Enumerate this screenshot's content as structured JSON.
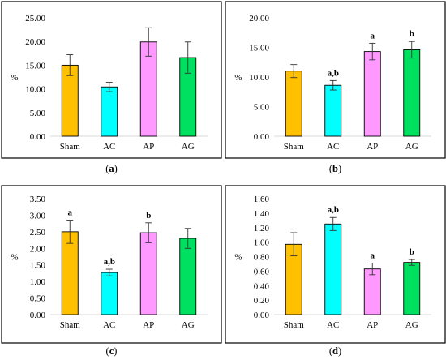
{
  "colors": {
    "Sham": "#FFC000",
    "AC": "#00FFFF",
    "AP": "#FF99FF",
    "AG": "#00E060",
    "frame": "#000000",
    "axis": "#D9D9D9"
  },
  "chart_data": [
    {
      "panel": "a",
      "type": "bar",
      "categories": [
        "Sham",
        "AC",
        "AP",
        "AG"
      ],
      "values": [
        15.0,
        10.4,
        19.9,
        16.6
      ],
      "errors": [
        2.2,
        1.0,
        3.0,
        3.3
      ],
      "significance": [
        "",
        "",
        "",
        ""
      ],
      "ylabel": "%",
      "ylim": [
        0,
        25
      ],
      "yticks": [
        "0.00",
        "5.00",
        "10.00",
        "15.00",
        "20.00",
        "25.00"
      ],
      "grid": false
    },
    {
      "panel": "b",
      "type": "bar",
      "categories": [
        "Sham",
        "AC",
        "AP",
        "AG"
      ],
      "values": [
        11.0,
        8.6,
        14.3,
        14.6
      ],
      "errors": [
        1.1,
        0.8,
        1.4,
        1.4
      ],
      "significance": [
        "",
        "a,b",
        "a",
        "b"
      ],
      "ylabel": "%",
      "ylim": [
        0,
        20
      ],
      "yticks": [
        "0.00",
        "5.00",
        "10.00",
        "15.00",
        "20.00"
      ],
      "grid": false
    },
    {
      "panel": "c",
      "type": "bar",
      "categories": [
        "Sham",
        "AC",
        "AP",
        "AG"
      ],
      "values": [
        2.5,
        1.27,
        2.47,
        2.3
      ],
      "errors": [
        0.35,
        0.1,
        0.3,
        0.3
      ],
      "significance": [
        "a",
        "a,b",
        "b",
        ""
      ],
      "ylabel": "%",
      "ylim": [
        0,
        3.5
      ],
      "yticks": [
        "0.00",
        "0.50",
        "1.00",
        "1.50",
        "2.00",
        "2.50",
        "3.00",
        "3.50"
      ],
      "grid": false
    },
    {
      "panel": "d",
      "type": "bar",
      "categories": [
        "Sham",
        "AC",
        "AP",
        "AG"
      ],
      "values": [
        0.97,
        1.25,
        0.63,
        0.72
      ],
      "errors": [
        0.16,
        0.09,
        0.08,
        0.04
      ],
      "significance": [
        "",
        "a,b",
        "a",
        "b"
      ],
      "ylabel": "%",
      "ylim": [
        0,
        1.6
      ],
      "yticks": [
        "0.00",
        "0.20",
        "0.40",
        "0.60",
        "0.80",
        "1.00",
        "1.20",
        "1.40",
        "1.60"
      ],
      "grid": false
    }
  ],
  "captions": [
    {
      "open": "(",
      "letter": "a",
      "close": ")"
    },
    {
      "open": "(",
      "letter": "b",
      "close": ")"
    },
    {
      "open": "(",
      "letter": "c",
      "close": ")"
    },
    {
      "open": "(",
      "letter": "d",
      "close": ")"
    }
  ]
}
